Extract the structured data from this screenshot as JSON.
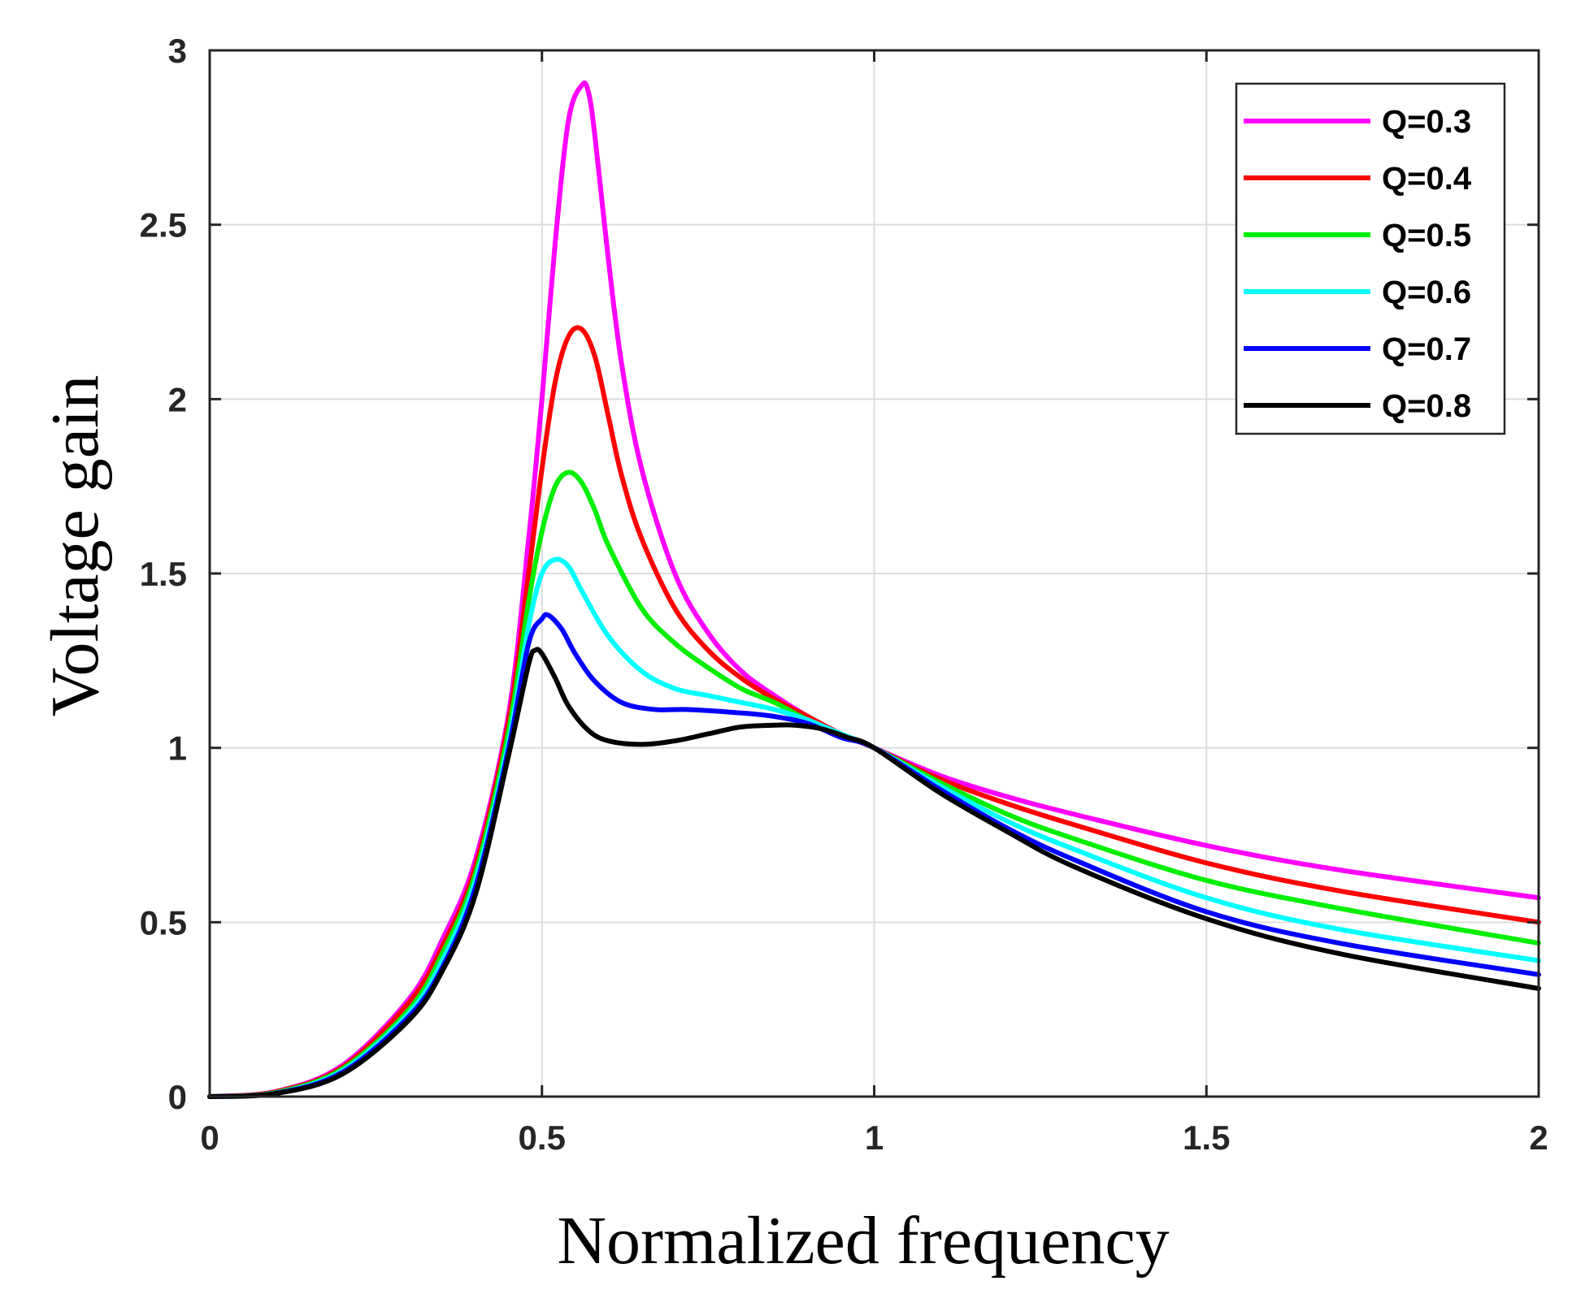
{
  "chart_data": {
    "type": "line",
    "title": "",
    "xlabel": "Normalized frequency",
    "ylabel": "Voltage gain",
    "xlim": [
      0,
      2
    ],
    "ylim": [
      0,
      3
    ],
    "xticks": [
      0,
      0.5,
      1,
      1.5,
      2
    ],
    "xtick_labels": [
      "0",
      "0.5",
      "1",
      "1.5",
      "2"
    ],
    "yticks": [
      0,
      0.5,
      1,
      1.5,
      2,
      2.5,
      3
    ],
    "ytick_labels": [
      "0",
      "0.5",
      "1",
      "1.5",
      "2",
      "2.5",
      "3"
    ],
    "grid": true,
    "legend_position": "top-right",
    "series": [
      {
        "name": "Q=0.3",
        "color": "#ff00ff",
        "x": [
          0,
          0.1,
          0.2,
          0.3,
          0.35,
          0.4,
          0.45,
          0.48,
          0.5,
          0.52,
          0.54,
          0.56,
          0.57,
          0.58,
          0.6,
          0.62,
          0.65,
          0.7,
          0.75,
          0.8,
          0.85,
          0.9,
          0.95,
          1,
          1.1,
          1.2,
          1.3,
          1.5,
          1.7,
          2
        ],
        "y": [
          0,
          0.015,
          0.09,
          0.28,
          0.45,
          0.68,
          1.1,
          1.6,
          2.0,
          2.45,
          2.8,
          2.9,
          2.88,
          2.75,
          2.4,
          2.1,
          1.8,
          1.5,
          1.33,
          1.22,
          1.15,
          1.09,
          1.04,
          1.0,
          0.92,
          0.86,
          0.81,
          0.72,
          0.65,
          0.57
        ]
      },
      {
        "name": "Q=0.4",
        "color": "#ff0000",
        "x": [
          0,
          0.1,
          0.2,
          0.3,
          0.35,
          0.4,
          0.45,
          0.48,
          0.5,
          0.52,
          0.54,
          0.56,
          0.58,
          0.6,
          0.62,
          0.65,
          0.7,
          0.75,
          0.8,
          0.85,
          0.9,
          0.95,
          1,
          1.1,
          1.2,
          1.3,
          1.5,
          1.7,
          2
        ],
        "y": [
          0,
          0.014,
          0.085,
          0.27,
          0.43,
          0.66,
          1.08,
          1.5,
          1.8,
          2.05,
          2.18,
          2.2,
          2.12,
          1.95,
          1.78,
          1.6,
          1.4,
          1.28,
          1.2,
          1.14,
          1.09,
          1.04,
          1.0,
          0.91,
          0.84,
          0.78,
          0.67,
          0.59,
          0.5
        ]
      },
      {
        "name": "Q=0.5",
        "color": "#00ee00",
        "x": [
          0,
          0.1,
          0.2,
          0.3,
          0.35,
          0.4,
          0.45,
          0.48,
          0.5,
          0.52,
          0.54,
          0.56,
          0.58,
          0.6,
          0.65,
          0.7,
          0.75,
          0.8,
          0.85,
          0.9,
          0.95,
          1,
          1.1,
          1.2,
          1.3,
          1.5,
          1.7,
          2
        ],
        "y": [
          0,
          0.012,
          0.08,
          0.25,
          0.41,
          0.64,
          1.05,
          1.42,
          1.62,
          1.75,
          1.79,
          1.76,
          1.68,
          1.58,
          1.4,
          1.3,
          1.23,
          1.17,
          1.13,
          1.08,
          1.04,
          1.0,
          0.9,
          0.81,
          0.74,
          0.62,
          0.54,
          0.44
        ]
      },
      {
        "name": "Q=0.6",
        "color": "#00ffff",
        "x": [
          0,
          0.1,
          0.2,
          0.3,
          0.35,
          0.4,
          0.45,
          0.48,
          0.5,
          0.52,
          0.54,
          0.56,
          0.6,
          0.65,
          0.7,
          0.75,
          0.8,
          0.85,
          0.9,
          0.95,
          1,
          1.1,
          1.2,
          1.3,
          1.5,
          1.7,
          2
        ],
        "y": [
          0,
          0.01,
          0.075,
          0.24,
          0.39,
          0.62,
          1.02,
          1.35,
          1.5,
          1.54,
          1.52,
          1.45,
          1.32,
          1.22,
          1.17,
          1.15,
          1.13,
          1.11,
          1.08,
          1.04,
          1.0,
          0.89,
          0.79,
          0.71,
          0.57,
          0.48,
          0.39
        ]
      },
      {
        "name": "Q=0.7",
        "color": "#0000ff",
        "x": [
          0,
          0.1,
          0.2,
          0.3,
          0.35,
          0.4,
          0.45,
          0.48,
          0.5,
          0.51,
          0.53,
          0.55,
          0.58,
          0.62,
          0.67,
          0.72,
          0.8,
          0.85,
          0.9,
          0.95,
          1,
          1.1,
          1.2,
          1.3,
          1.5,
          1.7,
          2
        ],
        "y": [
          0,
          0.01,
          0.07,
          0.23,
          0.37,
          0.6,
          1.0,
          1.3,
          1.37,
          1.38,
          1.34,
          1.27,
          1.19,
          1.13,
          1.11,
          1.11,
          1.1,
          1.09,
          1.07,
          1.03,
          1.0,
          0.88,
          0.77,
          0.68,
          0.53,
          0.44,
          0.35
        ]
      },
      {
        "name": "Q=0.8",
        "color": "#000000",
        "x": [
          0,
          0.1,
          0.2,
          0.3,
          0.35,
          0.4,
          0.45,
          0.48,
          0.49,
          0.5,
          0.52,
          0.54,
          0.57,
          0.6,
          0.65,
          0.7,
          0.75,
          0.8,
          0.85,
          0.88,
          0.92,
          0.96,
          1,
          1.1,
          1.2,
          1.3,
          1.5,
          1.7,
          2
        ],
        "y": [
          0,
          0.009,
          0.065,
          0.22,
          0.36,
          0.58,
          0.98,
          1.24,
          1.28,
          1.27,
          1.2,
          1.12,
          1.05,
          1.02,
          1.01,
          1.02,
          1.04,
          1.06,
          1.065,
          1.065,
          1.055,
          1.03,
          1.0,
          0.87,
          0.76,
          0.66,
          0.51,
          0.41,
          0.31
        ]
      }
    ]
  }
}
